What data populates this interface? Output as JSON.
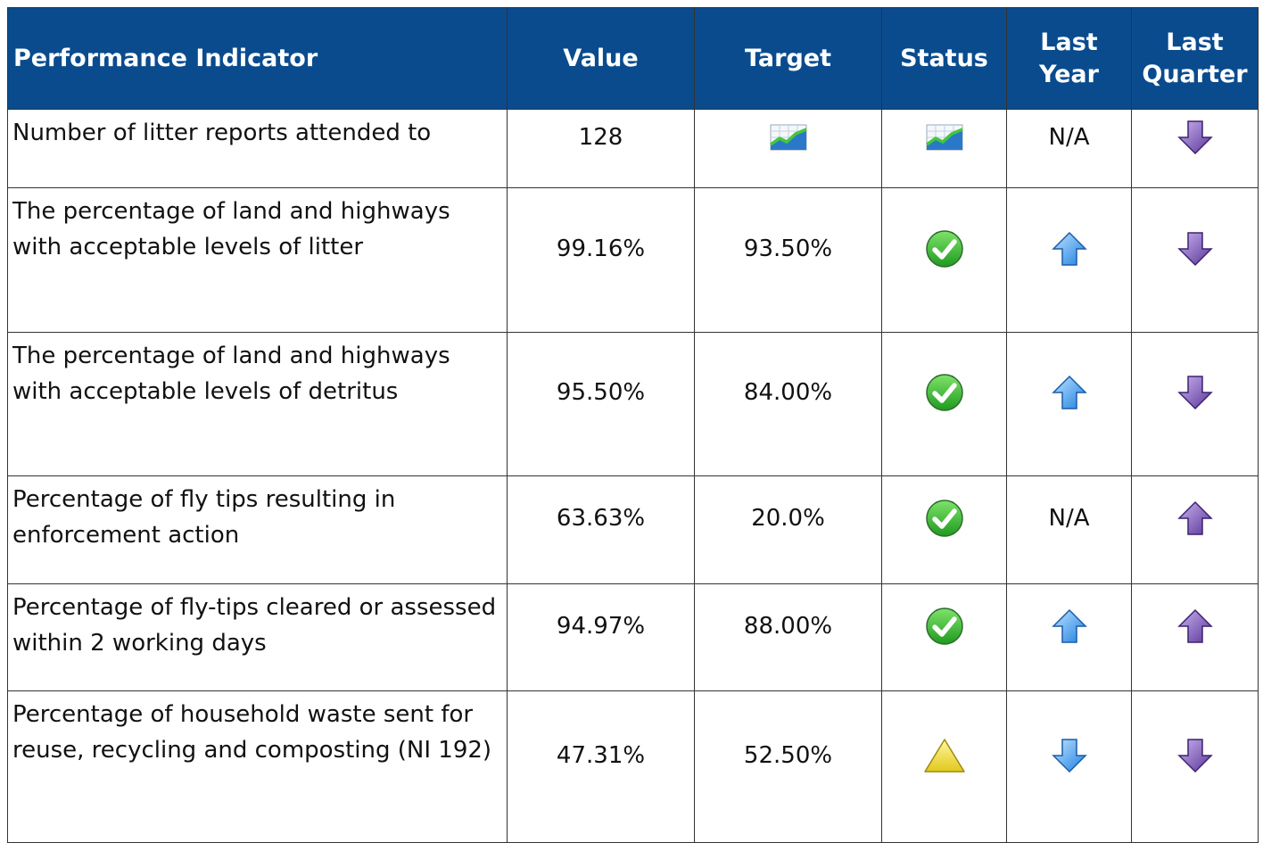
{
  "table": {
    "headers": [
      "Performance Indicator",
      "Value",
      "Target",
      "Status",
      "Last Year",
      "Last Quarter"
    ],
    "rows": [
      {
        "indicator": "Number of litter reports attended to",
        "value": "128",
        "last_year": "N/A"
      },
      {
        "indicator": "The percentage of land and highways with acceptable levels of litter",
        "value": "99.16%",
        "target": "93.50%"
      },
      {
        "indicator": "The percentage of land and highways with acceptable levels of detritus",
        "value": "95.50%",
        "target": "84.00%"
      },
      {
        "indicator": "Percentage of fly tips resulting in enforcement action",
        "value": "63.63%",
        "target": "20.0%",
        "last_year": "N/A"
      },
      {
        "indicator": "Percentage of fly-tips cleared or assessed within 2 working days",
        "value": "94.97%",
        "target": "88.00%"
      },
      {
        "indicator": "Percentage of household waste sent for reuse, recycling and composting (NI 192)",
        "value": "47.31%",
        "target": "52.50%"
      }
    ]
  }
}
